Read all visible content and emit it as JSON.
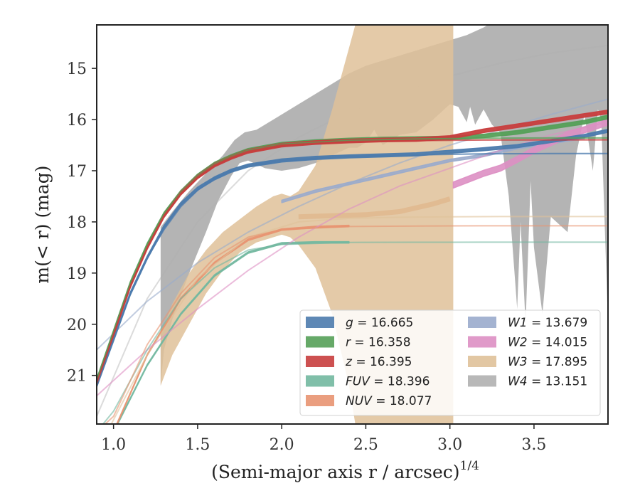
{
  "chart_data": {
    "type": "line",
    "xlabel": "(Semi-major axis r / arcsec)",
    "xlabel_sup": "1/4",
    "ylabel": "m(< r) (mag)",
    "xlim": [
      0.9,
      3.94
    ],
    "ylim": [
      21.95,
      14.15
    ],
    "y_inverted": true,
    "x_ticks": [
      1.0,
      1.5,
      2.0,
      2.5,
      3.0,
      3.5
    ],
    "x_tick_labels": [
      "1.0",
      "1.5",
      "2.0",
      "2.5",
      "3.0",
      "3.5"
    ],
    "y_ticks": [
      15,
      16,
      17,
      18,
      19,
      20,
      21
    ],
    "y_tick_labels": [
      "15",
      "16",
      "17",
      "18",
      "19",
      "20",
      "21"
    ],
    "grid": false,
    "legend": {
      "placement": "lower-right",
      "columns": 2
    },
    "series": [
      {
        "name": "g",
        "legend_label": "g = 16.665",
        "color": "#4c7bad",
        "band": {
          "x": [
            0.9,
            1.0,
            1.1,
            1.2,
            1.3,
            1.4,
            1.5,
            1.6,
            1.7,
            1.8,
            2.0,
            2.2,
            2.4,
            2.6,
            2.8,
            3.0,
            3.2,
            3.4,
            3.6,
            3.8,
            3.94
          ],
          "y": [
            21.2,
            20.3,
            19.4,
            18.7,
            18.1,
            17.65,
            17.35,
            17.15,
            17.0,
            16.9,
            16.8,
            16.75,
            16.72,
            16.7,
            16.68,
            16.63,
            16.58,
            16.52,
            16.42,
            16.32,
            16.22
          ],
          "width": 0.06
        },
        "fit": {
          "x": [
            0.9,
            1.0,
            1.1,
            1.2,
            1.3,
            1.4,
            1.5,
            1.6,
            1.7,
            1.8,
            2.0,
            2.4,
            2.8,
            3.2,
            3.6,
            3.94
          ],
          "y": [
            21.2,
            20.3,
            19.4,
            18.7,
            18.15,
            17.7,
            17.38,
            17.15,
            17.0,
            16.9,
            16.8,
            16.72,
            16.69,
            16.67,
            16.665,
            16.665
          ]
        }
      },
      {
        "name": "r",
        "legend_label": "r = 16.358",
        "color": "#55a058",
        "band": {
          "x": [
            0.9,
            1.0,
            1.1,
            1.2,
            1.3,
            1.4,
            1.5,
            1.6,
            1.7,
            1.8,
            2.0,
            2.2,
            2.4,
            2.6,
            2.8,
            3.0,
            3.2,
            3.4,
            3.6,
            3.8,
            3.94
          ],
          "y": [
            21.1,
            20.15,
            19.2,
            18.45,
            17.85,
            17.42,
            17.1,
            16.87,
            16.72,
            16.6,
            16.48,
            16.43,
            16.4,
            16.38,
            16.37,
            16.36,
            16.32,
            16.25,
            16.15,
            16.05,
            15.95
          ],
          "width": 0.07
        },
        "fit": {
          "x": [
            0.9,
            1.0,
            1.1,
            1.2,
            1.3,
            1.4,
            1.5,
            1.6,
            1.7,
            1.8,
            2.0,
            2.4,
            2.8,
            3.2,
            3.6,
            3.94
          ],
          "y": [
            21.1,
            20.15,
            19.2,
            18.45,
            17.85,
            17.42,
            17.1,
            16.87,
            16.72,
            16.6,
            16.48,
            16.41,
            16.38,
            16.365,
            16.36,
            16.358
          ]
        }
      },
      {
        "name": "z",
        "legend_label": "z = 16.395",
        "color": "#c83e3e",
        "band": {
          "x": [
            0.9,
            1.0,
            1.1,
            1.2,
            1.3,
            1.4,
            1.5,
            1.6,
            1.7,
            1.8,
            2.0,
            2.2,
            2.4,
            2.6,
            2.8,
            3.0,
            3.2,
            3.4,
            3.6,
            3.8,
            3.94
          ],
          "y": [
            21.15,
            20.2,
            19.25,
            18.5,
            17.88,
            17.44,
            17.12,
            16.89,
            16.74,
            16.62,
            16.5,
            16.45,
            16.42,
            16.4,
            16.39,
            16.35,
            16.22,
            16.12,
            16.02,
            15.92,
            15.85
          ],
          "width": 0.07
        },
        "fit": {
          "x": [
            0.9,
            1.0,
            1.1,
            1.2,
            1.3,
            1.4,
            1.5,
            1.6,
            1.7,
            1.8,
            2.0,
            2.4,
            2.8,
            3.2,
            3.6,
            3.94
          ],
          "y": [
            21.15,
            20.2,
            19.25,
            18.5,
            17.88,
            17.44,
            17.12,
            16.89,
            16.74,
            16.62,
            16.5,
            16.43,
            16.41,
            16.4,
            16.397,
            16.395
          ]
        }
      },
      {
        "name": "FUV",
        "legend_label": "FUV = 18.396",
        "color": "#72b8a0",
        "band": {
          "x": [
            1.0,
            1.2,
            1.4,
            1.6,
            1.8,
            2.0,
            2.2,
            2.4
          ],
          "y": [
            22.1,
            20.8,
            19.8,
            19.05,
            18.6,
            18.42,
            18.4,
            18.4
          ],
          "width": 0.03
        },
        "fit": {
          "x": [
            0.9,
            1.0,
            1.2,
            1.4,
            1.6,
            1.8,
            2.0,
            2.4,
            2.8,
            3.2,
            3.6,
            3.94
          ],
          "y": [
            22.1,
            21.7,
            20.5,
            19.5,
            18.9,
            18.55,
            18.44,
            18.4,
            18.397,
            18.396,
            18.396,
            18.396
          ]
        }
      },
      {
        "name": "NUV",
        "legend_label": "NUV = 18.077",
        "color": "#e89471",
        "band": {
          "x": [
            1.0,
            1.2,
            1.4,
            1.6,
            1.8,
            2.0,
            2.2,
            2.4
          ],
          "y": [
            22.1,
            20.6,
            19.5,
            18.8,
            18.35,
            18.15,
            18.1,
            18.08
          ],
          "width": 0.03
        },
        "fit": {
          "x": [
            0.9,
            1.0,
            1.2,
            1.4,
            1.6,
            1.8,
            2.0,
            2.4,
            2.8,
            3.2,
            3.6,
            3.94
          ],
          "y": [
            22.1,
            21.8,
            20.4,
            19.4,
            18.7,
            18.3,
            18.15,
            18.09,
            18.08,
            18.077,
            18.077,
            18.077
          ]
        }
      },
      {
        "name": "W1",
        "legend_label": "W1 = 13.679",
        "color": "#9aabcc",
        "band": {
          "x": [
            2.0,
            2.2,
            2.4,
            2.6,
            2.8,
            3.0,
            3.2,
            3.4,
            3.6,
            3.8
          ],
          "y": [
            17.6,
            17.4,
            17.25,
            17.1,
            16.95,
            16.8,
            16.7,
            16.55,
            16.45,
            16.35
          ],
          "width": 0.05
        },
        "fit": {
          "x": [
            0.9,
            1.2,
            1.5,
            1.8,
            2.1,
            2.4,
            2.7,
            3.0,
            3.3,
            3.6,
            3.94
          ],
          "y": [
            20.5,
            19.55,
            18.8,
            18.2,
            17.7,
            17.25,
            16.85,
            16.5,
            16.2,
            15.9,
            15.6
          ]
        }
      },
      {
        "name": "W2",
        "legend_label": "W2 = 14.015",
        "color": "#dd8fc3",
        "band": {
          "x": [
            3.02,
            3.1,
            3.2,
            3.3,
            3.4,
            3.5,
            3.6,
            3.7,
            3.8,
            3.94
          ],
          "y": [
            17.28,
            17.18,
            17.05,
            16.95,
            16.78,
            16.6,
            16.45,
            16.3,
            16.2,
            16.05
          ],
          "width": 0.12
        },
        "fit": {
          "x": [
            0.9,
            1.2,
            1.5,
            1.8,
            2.1,
            2.4,
            2.7,
            3.0,
            3.3,
            3.6,
            3.94
          ],
          "y": [
            21.4,
            20.5,
            19.7,
            18.95,
            18.3,
            17.75,
            17.3,
            16.95,
            16.6,
            16.3,
            16.05
          ]
        }
      },
      {
        "name": "W3",
        "legend_label": "W3 = 17.895",
        "color": "#dfc199",
        "band_upper": {
          "x": [
            1.28,
            1.35,
            1.45,
            1.55,
            1.65,
            1.75,
            1.85,
            1.95,
            2.0,
            2.05,
            2.1,
            2.2,
            2.3,
            2.4,
            2.45,
            2.5,
            2.6,
            2.7,
            2.8,
            2.9,
            3.0,
            3.02
          ],
          "y": [
            20.2,
            19.6,
            19.0,
            18.55,
            18.2,
            17.95,
            17.7,
            17.5,
            17.45,
            17.5,
            17.4,
            16.9,
            15.8,
            14.6,
            14.0,
            13.8,
            13.8,
            13.8,
            13.8,
            13.8,
            13.8,
            13.8
          ]
        },
        "band_lower": {
          "x": [
            1.28,
            1.35,
            1.45,
            1.55,
            1.65,
            1.75,
            1.85,
            1.95,
            2.0,
            2.05,
            2.1,
            2.2,
            2.3,
            2.4,
            2.45,
            2.5,
            2.6,
            2.7,
            2.8,
            2.9,
            3.0,
            3.02
          ],
          "y": [
            21.2,
            20.6,
            20.0,
            19.4,
            18.95,
            18.6,
            18.4,
            18.3,
            18.25,
            18.3,
            18.45,
            18.9,
            19.8,
            21.2,
            22.2,
            22.5,
            22.5,
            22.5,
            22.5,
            22.5,
            22.5,
            22.5
          ]
        },
        "fit": {
          "x": [
            0.9,
            1.2,
            1.5,
            1.8,
            2.1,
            2.4,
            2.7,
            3.0,
            3.3,
            3.6,
            3.94
          ],
          "y": [
            22.5,
            20.6,
            19.1,
            18.3,
            18.0,
            17.93,
            17.91,
            17.9,
            17.896,
            17.895,
            17.895
          ]
        },
        "median": {
          "x": [
            2.1,
            2.3,
            2.5,
            2.7,
            2.9,
            3.0
          ],
          "y": [
            17.9,
            17.88,
            17.86,
            17.8,
            17.65,
            17.55
          ]
        }
      },
      {
        "name": "W4",
        "legend_label": "W4 = 13.151",
        "color": "#b0b0b0",
        "band_upper": {
          "x": [
            1.28,
            1.35,
            1.45,
            1.55,
            1.65,
            1.72,
            1.78,
            1.85,
            1.95,
            2.0,
            2.1,
            2.2,
            2.3,
            2.4,
            2.5,
            2.6,
            2.7,
            2.8,
            2.9,
            3.0,
            3.1,
            3.2,
            3.3,
            3.4,
            3.5,
            3.6,
            3.7,
            3.8,
            3.94
          ],
          "y": [
            18.1,
            17.8,
            17.4,
            17.05,
            16.7,
            16.4,
            16.25,
            16.2,
            16.0,
            15.9,
            15.7,
            15.5,
            15.3,
            15.1,
            14.95,
            14.85,
            14.75,
            14.65,
            14.55,
            14.45,
            14.35,
            14.2,
            14.0,
            14.0,
            14.0,
            14.0,
            14.0,
            14.0,
            14.0
          ]
        },
        "band_lower": {
          "x": [
            1.28,
            1.3,
            1.35,
            1.45,
            1.55,
            1.62,
            1.7,
            1.75,
            1.8,
            1.9,
            2.0,
            2.1,
            2.2,
            2.3,
            2.4,
            2.45,
            2.5,
            2.55,
            2.6,
            2.7,
            2.8,
            2.9,
            3.0,
            3.05,
            3.1,
            3.12,
            3.15,
            3.2,
            3.25,
            3.3,
            3.35,
            3.4,
            3.42,
            3.45,
            3.48,
            3.5,
            3.55,
            3.6,
            3.7,
            3.75,
            3.8,
            3.85,
            3.88,
            3.9,
            3.94
          ],
          "y": [
            21.2,
            20.5,
            19.9,
            19.0,
            18.2,
            17.6,
            17.1,
            16.85,
            16.8,
            16.95,
            17.0,
            16.95,
            16.85,
            16.7,
            16.55,
            16.55,
            16.45,
            16.2,
            16.5,
            16.3,
            16.25,
            16.0,
            15.7,
            15.75,
            16.05,
            15.75,
            16.1,
            15.8,
            16.1,
            16.25,
            17.5,
            19.7,
            18.0,
            20.0,
            17.2,
            18.5,
            19.8,
            17.9,
            18.2,
            16.7,
            15.9,
            17.0,
            15.8,
            16.0,
            20.0
          ]
        },
        "fit": {
          "x": [
            0.9,
            1.2,
            1.5,
            1.8,
            2.1,
            2.4,
            2.7,
            3.0,
            3.3,
            3.6,
            3.94
          ],
          "y": [
            21.8,
            19.5,
            18.0,
            17.0,
            16.35,
            15.85,
            15.45,
            15.15,
            14.9,
            14.7,
            14.55
          ]
        }
      }
    ]
  }
}
